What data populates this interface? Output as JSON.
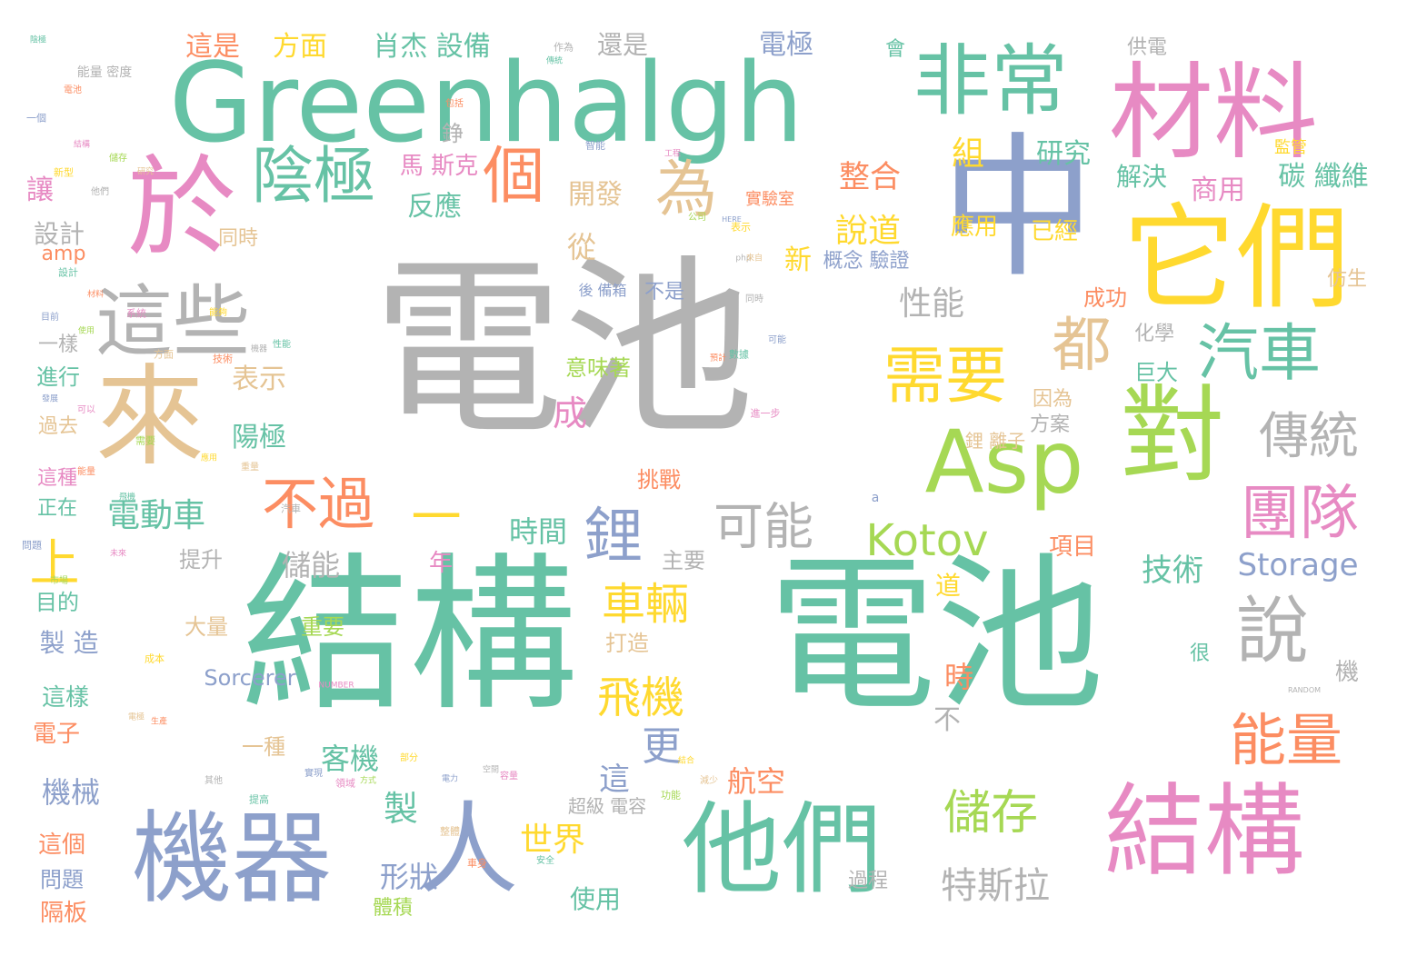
{
  "words": [
    {
      "text": "電池",
      "color": "gray"
    },
    {
      "text": "結構",
      "color": "teal"
    },
    {
      "text": "電池",
      "color": "teal"
    },
    {
      "text": "Greenhalgh",
      "color": "teal"
    },
    {
      "text": "中",
      "color": "blue"
    },
    {
      "text": "它們",
      "color": "yellow"
    },
    {
      "text": "材料",
      "color": "pink"
    },
    {
      "text": "非常",
      "color": "teal"
    },
    {
      "text": "於",
      "color": "pink"
    },
    {
      "text": "來",
      "color": "tan"
    },
    {
      "text": "這些",
      "color": "gray"
    },
    {
      "text": "Asp",
      "color": "green"
    },
    {
      "text": "對",
      "color": "green"
    },
    {
      "text": "機器",
      "color": "blue"
    },
    {
      "text": "人",
      "color": "blue"
    },
    {
      "text": "他們",
      "color": "teal"
    },
    {
      "text": "結構",
      "color": "pink"
    },
    {
      "text": "陰極",
      "color": "teal"
    },
    {
      "text": "個",
      "color": "orange"
    },
    {
      "text": "為",
      "color": "tan"
    },
    {
      "text": "需要",
      "color": "yellow"
    },
    {
      "text": "都",
      "color": "tan"
    },
    {
      "text": "汽車",
      "color": "teal"
    },
    {
      "text": "傳統",
      "color": "gray"
    },
    {
      "text": "團隊",
      "color": "pink"
    },
    {
      "text": "說",
      "color": "gray"
    },
    {
      "text": "能量",
      "color": "orange"
    },
    {
      "text": "鋰",
      "color": "blue"
    },
    {
      "text": "可能",
      "color": "gray"
    },
    {
      "text": "Kotov",
      "color": "green"
    },
    {
      "text": "不過",
      "color": "orange"
    },
    {
      "text": "一",
      "color": "yellow"
    },
    {
      "text": "上",
      "color": "yellow"
    },
    {
      "text": "車輛",
      "color": "yellow"
    },
    {
      "text": "飛機",
      "color": "yellow"
    },
    {
      "text": "儲存",
      "color": "green"
    },
    {
      "text": "特斯拉",
      "color": "gray"
    },
    {
      "text": "Storage",
      "color": "blue"
    },
    {
      "text": "技術",
      "color": "teal"
    },
    {
      "text": "電動車",
      "color": "teal"
    },
    {
      "text": "說道",
      "color": "yellow"
    },
    {
      "text": "性能",
      "color": "gray"
    },
    {
      "text": "整合",
      "color": "orange"
    },
    {
      "text": "研究",
      "color": "teal"
    },
    {
      "text": "組",
      "color": "yellow"
    },
    {
      "text": "商用",
      "color": "pink"
    },
    {
      "text": "碳 纖維",
      "color": "teal"
    },
    {
      "text": "解決",
      "color": "teal"
    },
    {
      "text": "開發",
      "color": "tan"
    },
    {
      "text": "反應",
      "color": "teal"
    },
    {
      "text": "馬 斯克",
      "color": "pink"
    },
    {
      "text": "這是",
      "color": "orange"
    },
    {
      "text": "方面",
      "color": "yellow"
    },
    {
      "text": "肖杰 設備",
      "color": "teal"
    },
    {
      "text": "還是",
      "color": "gray"
    },
    {
      "text": "電極",
      "color": "blue"
    },
    {
      "text": "供電",
      "color": "gray"
    },
    {
      "text": "會",
      "color": "teal"
    },
    {
      "text": "讓",
      "color": "pink"
    },
    {
      "text": "設計",
      "color": "gray"
    },
    {
      "text": "從",
      "color": "tan"
    },
    {
      "text": "新",
      "color": "yellow"
    },
    {
      "text": "概念 驗證",
      "color": "blue"
    },
    {
      "text": "應用",
      "color": "yellow"
    },
    {
      "text": "已經",
      "color": "yellow"
    },
    {
      "text": "同時",
      "color": "tan"
    },
    {
      "text": "不是",
      "color": "blue"
    },
    {
      "text": "成功",
      "color": "orange"
    },
    {
      "text": "仿生",
      "color": "tan"
    },
    {
      "text": "表示",
      "color": "tan"
    },
    {
      "text": "陽極",
      "color": "teal"
    },
    {
      "text": "意味著",
      "color": "green"
    },
    {
      "text": "化學",
      "color": "gray"
    },
    {
      "text": "巨大",
      "color": "teal"
    },
    {
      "text": "因為",
      "color": "tan"
    },
    {
      "text": "方案",
      "color": "gray"
    },
    {
      "text": "鋰 離子",
      "color": "tan"
    },
    {
      "text": "成",
      "color": "pink"
    },
    {
      "text": "挑戰",
      "color": "orange"
    },
    {
      "text": "時間",
      "color": "teal"
    },
    {
      "text": "儲能",
      "color": "gray"
    },
    {
      "text": "提升",
      "color": "gray"
    },
    {
      "text": "主要",
      "color": "gray"
    },
    {
      "text": "項目",
      "color": "orange"
    },
    {
      "text": "年",
      "color": "pink"
    },
    {
      "text": "道",
      "color": "yellow"
    },
    {
      "text": "一樣",
      "color": "gray"
    },
    {
      "text": "進行",
      "color": "teal"
    },
    {
      "text": "過去",
      "color": "tan"
    },
    {
      "text": "這種",
      "color": "pink"
    },
    {
      "text": "正在",
      "color": "teal"
    },
    {
      "text": "目的",
      "color": "teal"
    },
    {
      "text": "製 造",
      "color": "blue"
    },
    {
      "text": "大量",
      "color": "tan"
    },
    {
      "text": "重要",
      "color": "green"
    },
    {
      "text": "打造",
      "color": "tan"
    },
    {
      "text": "Sorcerer",
      "color": "blue"
    },
    {
      "text": "這樣",
      "color": "teal"
    },
    {
      "text": "電子",
      "color": "orange"
    },
    {
      "text": "一種",
      "color": "tan"
    },
    {
      "text": "機械",
      "color": "blue"
    },
    {
      "text": "客機",
      "color": "teal"
    },
    {
      "text": "更",
      "color": "blue"
    },
    {
      "text": "這",
      "color": "blue"
    },
    {
      "text": "航空",
      "color": "orange"
    },
    {
      "text": "時",
      "color": "orange"
    },
    {
      "text": "不",
      "color": "gray"
    },
    {
      "text": "機",
      "color": "gray"
    },
    {
      "text": "很",
      "color": "teal"
    },
    {
      "text": "製",
      "color": "teal"
    },
    {
      "text": "世界",
      "color": "yellow"
    },
    {
      "text": "形狀",
      "color": "blue"
    },
    {
      "text": "使用",
      "color": "teal"
    },
    {
      "text": "過程",
      "color": "gray"
    },
    {
      "text": "體積",
      "color": "green"
    },
    {
      "text": "超級 電容",
      "color": "gray"
    },
    {
      "text": "這個",
      "color": "orange"
    },
    {
      "text": "問題",
      "color": "blue"
    },
    {
      "text": "隔板",
      "color": "orange"
    },
    {
      "text": "amp",
      "color": "orange"
    },
    {
      "text": "錚",
      "color": "gray"
    },
    {
      "text": "實驗室",
      "color": "orange"
    },
    {
      "text": "監管",
      "color": "yellow"
    },
    {
      "text": "能量 密度",
      "color": "gray"
    },
    {
      "text": "後 備箱",
      "color": "blue"
    },
    {
      "text": "NUMBER",
      "color": "pink"
    },
    {
      "text": "RANDOM",
      "color": "gray"
    },
    {
      "text": "HERE",
      "color": "blue"
    },
    {
      "text": "php",
      "color": "gray"
    },
    {
      "text": "a",
      "color": "blue"
    }
  ],
  "tiny_words": [
    "陰極",
    "電池",
    "一個",
    "結構",
    "儲存",
    "新型",
    "研究",
    "他們",
    "設計",
    "材料",
    "目前",
    "系統",
    "使用",
    "能夠",
    "方面",
    "機器",
    "性能",
    "技術",
    "發展",
    "可以",
    "需要",
    "應用",
    "重量",
    "汽車",
    "飛機",
    "能量",
    "問題",
    "未來",
    "市場",
    "成本",
    "電極",
    "其他",
    "提高",
    "生產",
    "實現",
    "領域",
    "方式",
    "部分",
    "整體",
    "空間",
    "安全",
    "車身",
    "電力",
    "容量",
    "功能",
    "結合",
    "減少",
    "作為",
    "傳統",
    "包括",
    "智能",
    "工程",
    "公司",
    "表示",
    "來自",
    "同時",
    "數據",
    "預計",
    "可能",
    "進一步"
  ]
}
